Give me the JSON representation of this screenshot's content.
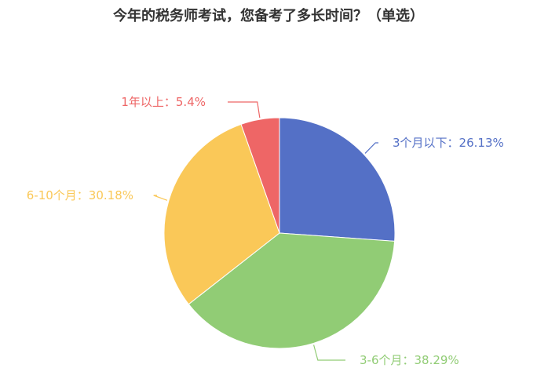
{
  "chart_data": {
    "type": "pie",
    "title": "今年的税务师考试，您备考了多长时间？（单选）",
    "slices": [
      {
        "label": "3个月以下",
        "value": 26.13,
        "display": "3个月以下：26.13%",
        "color": "#5470c6"
      },
      {
        "label": "3-6个月",
        "value": 38.29,
        "display": "3-6个月：38.29%",
        "color": "#91cc75"
      },
      {
        "label": "6-10个月",
        "value": 30.18,
        "display": "6-10个月：30.18%",
        "color": "#fac858"
      },
      {
        "label": "1年以上",
        "value": 5.4,
        "display": "1年以上：5.4%",
        "color": "#ee6666"
      }
    ]
  }
}
